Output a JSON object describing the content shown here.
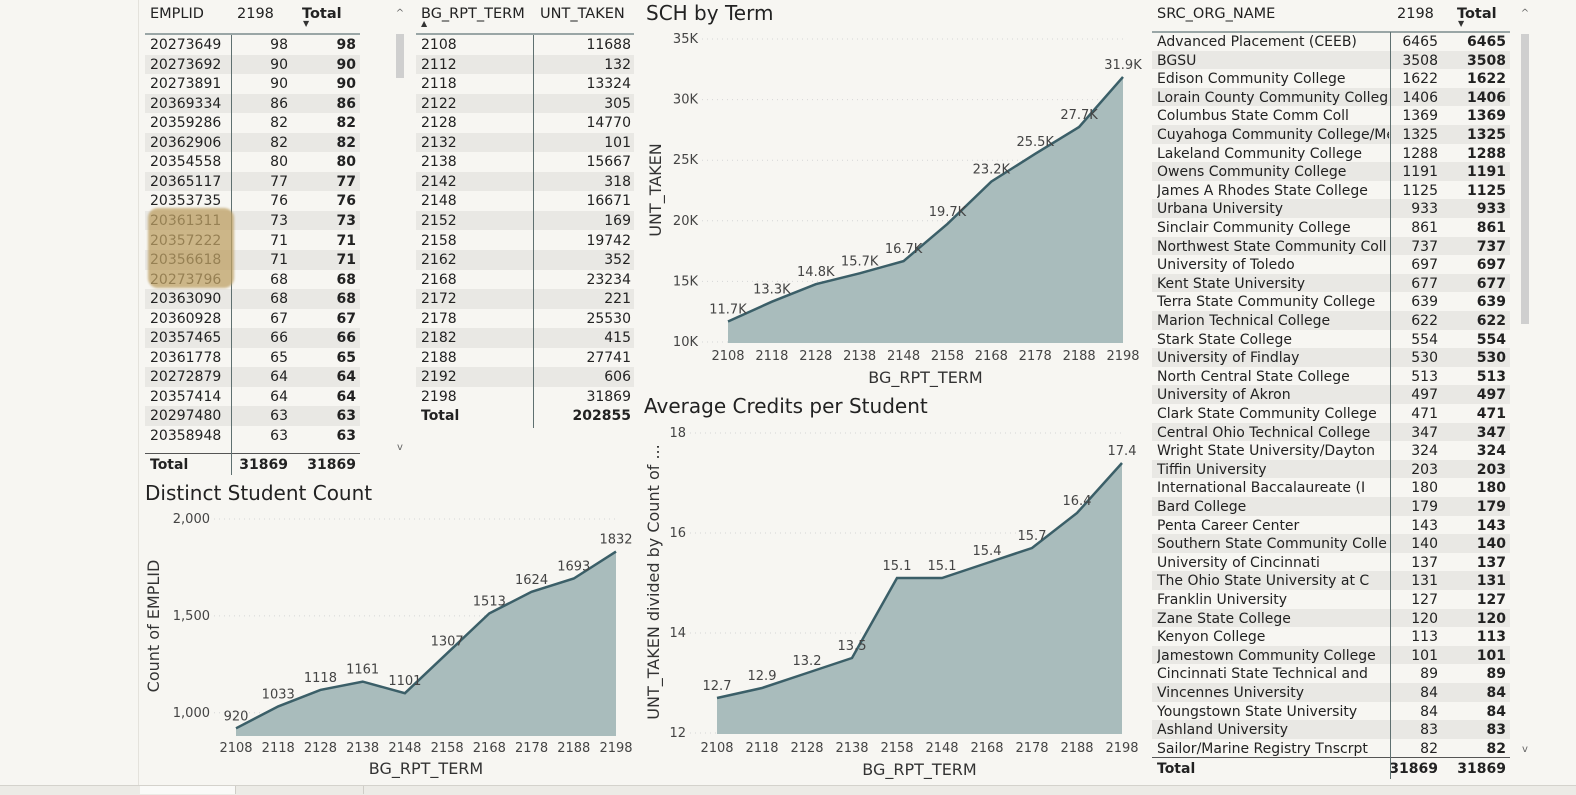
{
  "emplid_table": {
    "headers": [
      "EMPLID",
      "2198",
      "Total"
    ],
    "rows": [
      [
        "20273649",
        "98",
        "98"
      ],
      [
        "20273692",
        "90",
        "90"
      ],
      [
        "20273891",
        "90",
        "90"
      ],
      [
        "20369334",
        "86",
        "86"
      ],
      [
        "20359286",
        "82",
        "82"
      ],
      [
        "20362906",
        "82",
        "82"
      ],
      [
        "20354558",
        "80",
        "80"
      ],
      [
        "20365117",
        "77",
        "77"
      ],
      [
        "20353735",
        "76",
        "76"
      ],
      [
        "20361311",
        "73",
        "73"
      ],
      [
        "20357222",
        "71",
        "71"
      ],
      [
        "20356618",
        "71",
        "71"
      ],
      [
        "20273796",
        "68",
        "68"
      ],
      [
        "20363090",
        "68",
        "68"
      ],
      [
        "20360928",
        "67",
        "67"
      ],
      [
        "20357465",
        "66",
        "66"
      ],
      [
        "20361778",
        "65",
        "65"
      ],
      [
        "20272879",
        "64",
        "64"
      ],
      [
        "20357414",
        "64",
        "64"
      ],
      [
        "20297480",
        "63",
        "63"
      ],
      [
        "20358948",
        "63",
        "63"
      ]
    ],
    "total": [
      "Total",
      "31869",
      "31869"
    ]
  },
  "term_table": {
    "headers": [
      "BG_RPT_TERM",
      "UNT_TAKEN"
    ],
    "rows": [
      [
        "2108",
        "11688"
      ],
      [
        "2112",
        "132"
      ],
      [
        "2118",
        "13324"
      ],
      [
        "2122",
        "305"
      ],
      [
        "2128",
        "14770"
      ],
      [
        "2132",
        "101"
      ],
      [
        "2138",
        "15667"
      ],
      [
        "2142",
        "318"
      ],
      [
        "2148",
        "16671"
      ],
      [
        "2152",
        "169"
      ],
      [
        "2158",
        "19742"
      ],
      [
        "2162",
        "352"
      ],
      [
        "2168",
        "23234"
      ],
      [
        "2172",
        "221"
      ],
      [
        "2178",
        "25530"
      ],
      [
        "2182",
        "415"
      ],
      [
        "2188",
        "27741"
      ],
      [
        "2192",
        "606"
      ],
      [
        "2198",
        "31869"
      ]
    ],
    "total": [
      "Total",
      "202855"
    ]
  },
  "org_table": {
    "headers": [
      "SRC_ORG_NAME",
      "2198",
      "Total"
    ],
    "rows": [
      [
        "Advanced Placement (CEEB)",
        "6465",
        "6465"
      ],
      [
        "BGSU",
        "3508",
        "3508"
      ],
      [
        "Edison Community College",
        "1622",
        "1622"
      ],
      [
        "Lorain County Community Colleg",
        "1406",
        "1406"
      ],
      [
        "Columbus State Comm Coll",
        "1369",
        "1369"
      ],
      [
        "Cuyahoga Community College/Met",
        "1325",
        "1325"
      ],
      [
        "Lakeland Community College",
        "1288",
        "1288"
      ],
      [
        "Owens Community College",
        "1191",
        "1191"
      ],
      [
        "James A Rhodes State College",
        "1125",
        "1125"
      ],
      [
        "Urbana University",
        "933",
        "933"
      ],
      [
        "Sinclair Community College",
        "861",
        "861"
      ],
      [
        "Northwest State Community Coll",
        "737",
        "737"
      ],
      [
        "University of Toledo",
        "697",
        "697"
      ],
      [
        "Kent State University",
        "677",
        "677"
      ],
      [
        "Terra State Community College",
        "639",
        "639"
      ],
      [
        "Marion Technical College",
        "622",
        "622"
      ],
      [
        "Stark State College",
        "554",
        "554"
      ],
      [
        "University of Findlay",
        "530",
        "530"
      ],
      [
        "North Central State College",
        "513",
        "513"
      ],
      [
        "University of Akron",
        "497",
        "497"
      ],
      [
        "Clark State Community College",
        "471",
        "471"
      ],
      [
        "Central Ohio Technical College",
        "347",
        "347"
      ],
      [
        "Wright State University/Dayton",
        "324",
        "324"
      ],
      [
        "Tiffin University",
        "203",
        "203"
      ],
      [
        "International Baccalaureate (I",
        "180",
        "180"
      ],
      [
        "Bard College",
        "179",
        "179"
      ],
      [
        "Penta Career Center",
        "143",
        "143"
      ],
      [
        "Southern State Community Colle",
        "140",
        "140"
      ],
      [
        "University of Cincinnati",
        "137",
        "137"
      ],
      [
        "The Ohio State University at C",
        "131",
        "131"
      ],
      [
        "Franklin University",
        "127",
        "127"
      ],
      [
        "Zane State College",
        "120",
        "120"
      ],
      [
        "Kenyon College",
        "113",
        "113"
      ],
      [
        "Jamestown Community College",
        "101",
        "101"
      ],
      [
        "Cincinnati State Technical and",
        "89",
        "89"
      ],
      [
        "Vincennes University",
        "84",
        "84"
      ],
      [
        "Youngstown State University",
        "84",
        "84"
      ],
      [
        "Ashland University",
        "83",
        "83"
      ],
      [
        "Sailor/Marine Registry Tnscrpt",
        "82",
        "82"
      ]
    ],
    "total": [
      "Total",
      "31869",
      "31869"
    ]
  },
  "colors": {
    "area_fill": "#a9bcbc",
    "line": "#3b5f68",
    "grid": "#d6d6d6",
    "label": "#444444"
  },
  "chart_data": [
    {
      "type": "area",
      "title": "SCH by Term",
      "xlabel": "BG_RPT_TERM",
      "ylabel": "UNT_TAKEN",
      "categories": [
        "2108",
        "2118",
        "2128",
        "2138",
        "2148",
        "2158",
        "2168",
        "2178",
        "2188",
        "2198"
      ],
      "values": [
        11688,
        13324,
        14770,
        15667,
        16671,
        19742,
        23234,
        25530,
        27741,
        31869
      ],
      "data_labels": [
        "11.7K",
        "13.3K",
        "14.8K",
        "15.7K",
        "16.7K",
        "19.7K",
        "23.2K",
        "25.5K",
        "27.7K",
        "31.9K"
      ],
      "yticks": [
        10000,
        15000,
        20000,
        25000,
        30000,
        35000
      ],
      "ytick_labels": [
        "10K",
        "15K",
        "20K",
        "25K",
        "30K",
        "35K"
      ],
      "ylim": [
        10000,
        35000
      ]
    },
    {
      "type": "area",
      "title": "Average Credits per Student",
      "xlabel": "BG_RPT_TERM",
      "ylabel": "UNT_TAKEN divided by Count of ...",
      "categories": [
        "2108",
        "2118",
        "2128",
        "2138",
        "2158",
        "2148",
        "2168",
        "2178",
        "2188",
        "2198"
      ],
      "values": [
        12.7,
        12.9,
        13.2,
        13.5,
        15.1,
        15.1,
        15.4,
        15.7,
        16.4,
        17.4
      ],
      "data_labels": [
        "12.7",
        "12.9",
        "13.2",
        "13.5",
        "15.1",
        "15.1",
        "15.4",
        "15.7",
        "16.4",
        "17.4"
      ],
      "yticks": [
        12,
        14,
        16,
        18
      ],
      "ytick_labels": [
        "12",
        "14",
        "16",
        "18"
      ],
      "ylim": [
        12,
        18
      ]
    },
    {
      "type": "area",
      "title": "Distinct Student Count",
      "xlabel": "BG_RPT_TERM",
      "ylabel": "Count of EMPLID",
      "categories": [
        "2108",
        "2118",
        "2128",
        "2138",
        "2148",
        "2158",
        "2168",
        "2178",
        "2188",
        "2198"
      ],
      "values": [
        920,
        1033,
        1118,
        1161,
        1101,
        1307,
        1513,
        1624,
        1693,
        1832
      ],
      "data_labels": [
        "920",
        "1033",
        "1118",
        "1161",
        "1101",
        "1307",
        "1513",
        "1624",
        "1693",
        "1832"
      ],
      "yticks": [
        1000,
        1500,
        2000
      ],
      "ytick_labels": [
        "1,000",
        "1,500",
        "2,000"
      ],
      "ylim": [
        880,
        2000
      ]
    }
  ]
}
